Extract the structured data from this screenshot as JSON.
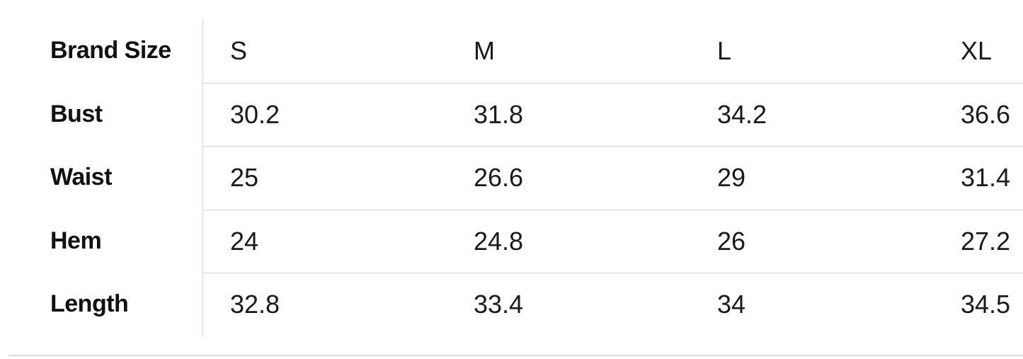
{
  "table": {
    "header": {
      "label": "Brand Size",
      "values": [
        "S",
        "M",
        "L",
        "XL"
      ]
    },
    "rows": [
      {
        "label": "Bust",
        "values": [
          "30.2",
          "31.8",
          "34.2",
          "36.6"
        ]
      },
      {
        "label": "Waist",
        "values": [
          "25",
          "26.6",
          "29",
          "31.4"
        ]
      },
      {
        "label": "Hem",
        "values": [
          "24",
          "24.8",
          "26",
          "27.2"
        ]
      },
      {
        "label": "Length",
        "values": [
          "32.8",
          "33.4",
          "34",
          "34.5"
        ]
      }
    ]
  }
}
